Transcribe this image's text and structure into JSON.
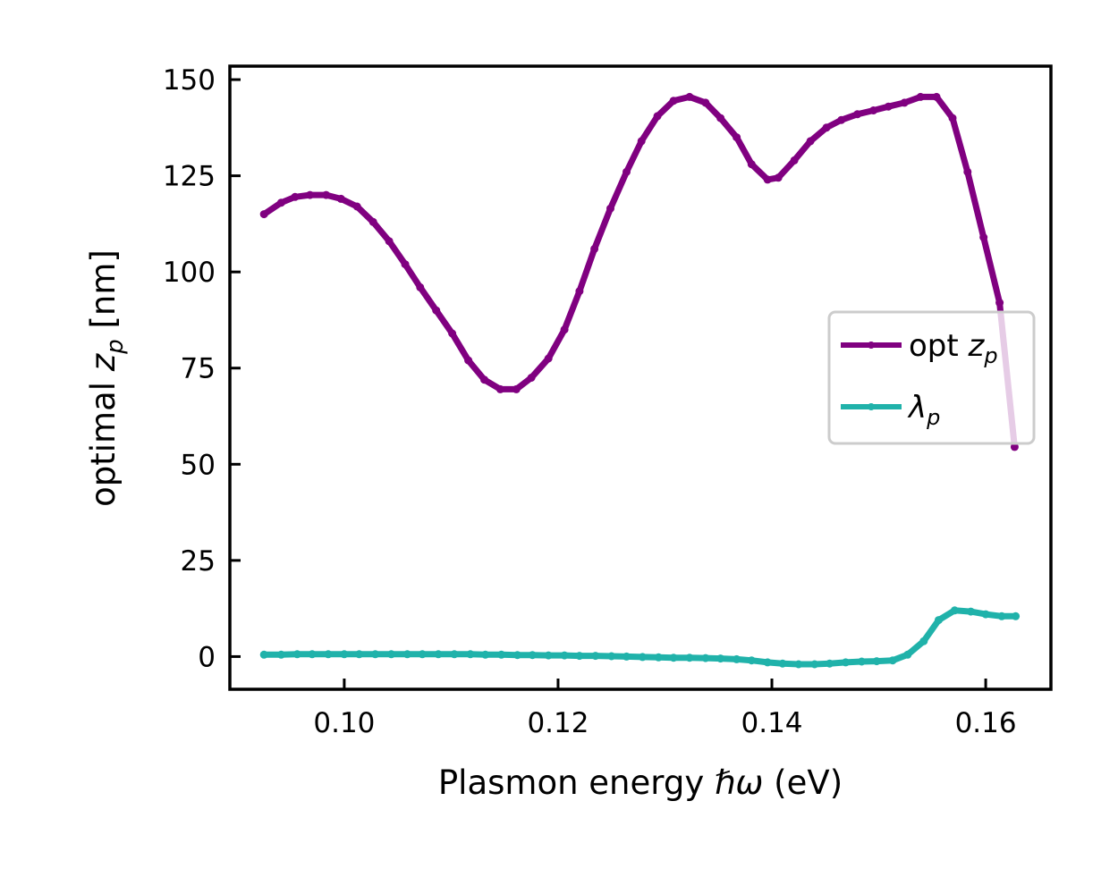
{
  "chart_data": {
    "type": "line",
    "xlabel": "Plasmon energy ℏω (eV)",
    "ylabel": "optimal z_p [nm]",
    "xlabel_parts": {
      "pre": "Plasmon energy ",
      "sym": "ℏω",
      "post": " (eV)"
    },
    "ylabel_parts": {
      "pre": "optimal ",
      "sym": "z",
      "sub": "p",
      "post": " [nm]"
    },
    "xlim": [
      0.0893,
      0.1661
    ],
    "ylim": [
      -8.5,
      153.5
    ],
    "xticks": [
      0.1,
      0.12,
      0.14,
      0.16
    ],
    "xtick_labels": [
      "0.10",
      "0.12",
      "0.14",
      "0.16"
    ],
    "yticks": [
      0,
      25,
      50,
      75,
      100,
      125,
      150
    ],
    "ytick_labels": [
      "0",
      "25",
      "50",
      "75",
      "100",
      "125",
      "150"
    ],
    "grid": false,
    "legend_position": "center-right",
    "colors": {
      "opt_zp": "#800080",
      "lambda_p": "#20b2aa"
    },
    "series": [
      {
        "name": "opt z_p",
        "label_parts": {
          "pre": "opt ",
          "sym": "z",
          "sub": "p"
        },
        "color": "#800080",
        "points": [
          [
            0.0925,
            115
          ],
          [
            0.0941,
            118
          ],
          [
            0.0954,
            119.5
          ],
          [
            0.0968,
            120
          ],
          [
            0.0983,
            120
          ],
          [
            0.0997,
            119
          ],
          [
            0.1012,
            117
          ],
          [
            0.1027,
            113
          ],
          [
            0.1042,
            108
          ],
          [
            0.1057,
            102
          ],
          [
            0.1071,
            96
          ],
          [
            0.1086,
            90
          ],
          [
            0.1101,
            84
          ],
          [
            0.1116,
            77
          ],
          [
            0.1131,
            72
          ],
          [
            0.1146,
            69.5
          ],
          [
            0.1161,
            69.5
          ],
          [
            0.1175,
            72.5
          ],
          [
            0.1191,
            77.5
          ],
          [
            0.1206,
            85
          ],
          [
            0.122,
            95
          ],
          [
            0.1234,
            106
          ],
          [
            0.1249,
            116.5
          ],
          [
            0.1264,
            126
          ],
          [
            0.1278,
            134
          ],
          [
            0.1293,
            140.5
          ],
          [
            0.1308,
            144.5
          ],
          [
            0.1323,
            145.5
          ],
          [
            0.1338,
            144
          ],
          [
            0.1352,
            140
          ],
          [
            0.1367,
            135
          ],
          [
            0.1381,
            128
          ],
          [
            0.1396,
            124
          ],
          [
            0.1406,
            124.5
          ],
          [
            0.1421,
            129
          ],
          [
            0.1436,
            134
          ],
          [
            0.1451,
            137.5
          ],
          [
            0.1465,
            139.5
          ],
          [
            0.148,
            141
          ],
          [
            0.1495,
            142
          ],
          [
            0.1509,
            143
          ],
          [
            0.1524,
            144
          ],
          [
            0.1539,
            145.5
          ],
          [
            0.1554,
            145.5
          ],
          [
            0.1569,
            140
          ],
          [
            0.1583,
            126
          ],
          [
            0.1598,
            109
          ],
          [
            0.1613,
            92
          ],
          [
            0.1627,
            54.5
          ]
        ]
      },
      {
        "name": "λ_p",
        "label_parts": {
          "sym": "λ",
          "sub": "p"
        },
        "color": "#20b2aa",
        "points": [
          [
            0.0925,
            0.5
          ],
          [
            0.0941,
            0.5
          ],
          [
            0.0956,
            0.6
          ],
          [
            0.097,
            0.6
          ],
          [
            0.0985,
            0.6
          ],
          [
            0.1,
            0.6
          ],
          [
            0.1014,
            0.6
          ],
          [
            0.1029,
            0.6
          ],
          [
            0.1044,
            0.6
          ],
          [
            0.1059,
            0.6
          ],
          [
            0.1073,
            0.6
          ],
          [
            0.1088,
            0.6
          ],
          [
            0.1103,
            0.6
          ],
          [
            0.1118,
            0.6
          ],
          [
            0.1132,
            0.5
          ],
          [
            0.1147,
            0.5
          ],
          [
            0.1162,
            0.4
          ],
          [
            0.1176,
            0.4
          ],
          [
            0.1191,
            0.3
          ],
          [
            0.1206,
            0.3
          ],
          [
            0.122,
            0.2
          ],
          [
            0.1235,
            0.2
          ],
          [
            0.125,
            0.1
          ],
          [
            0.1264,
            0.0
          ],
          [
            0.1279,
            -0.1
          ],
          [
            0.1294,
            -0.2
          ],
          [
            0.1308,
            -0.3
          ],
          [
            0.1323,
            -0.3
          ],
          [
            0.1338,
            -0.4
          ],
          [
            0.1352,
            -0.5
          ],
          [
            0.1367,
            -0.7
          ],
          [
            0.1381,
            -1.0
          ],
          [
            0.1396,
            -1.5
          ],
          [
            0.141,
            -1.8
          ],
          [
            0.1425,
            -2.0
          ],
          [
            0.144,
            -2.0
          ],
          [
            0.1454,
            -1.8
          ],
          [
            0.1469,
            -1.5
          ],
          [
            0.1484,
            -1.3
          ],
          [
            0.1498,
            -1.2
          ],
          [
            0.1513,
            -1.0
          ],
          [
            0.1527,
            0.5
          ],
          [
            0.1542,
            4.0
          ],
          [
            0.1556,
            9.5
          ],
          [
            0.1571,
            12
          ],
          [
            0.1586,
            11.7
          ],
          [
            0.16,
            11.0
          ],
          [
            0.1615,
            10.5
          ],
          [
            0.1628,
            10.5
          ]
        ]
      }
    ]
  }
}
